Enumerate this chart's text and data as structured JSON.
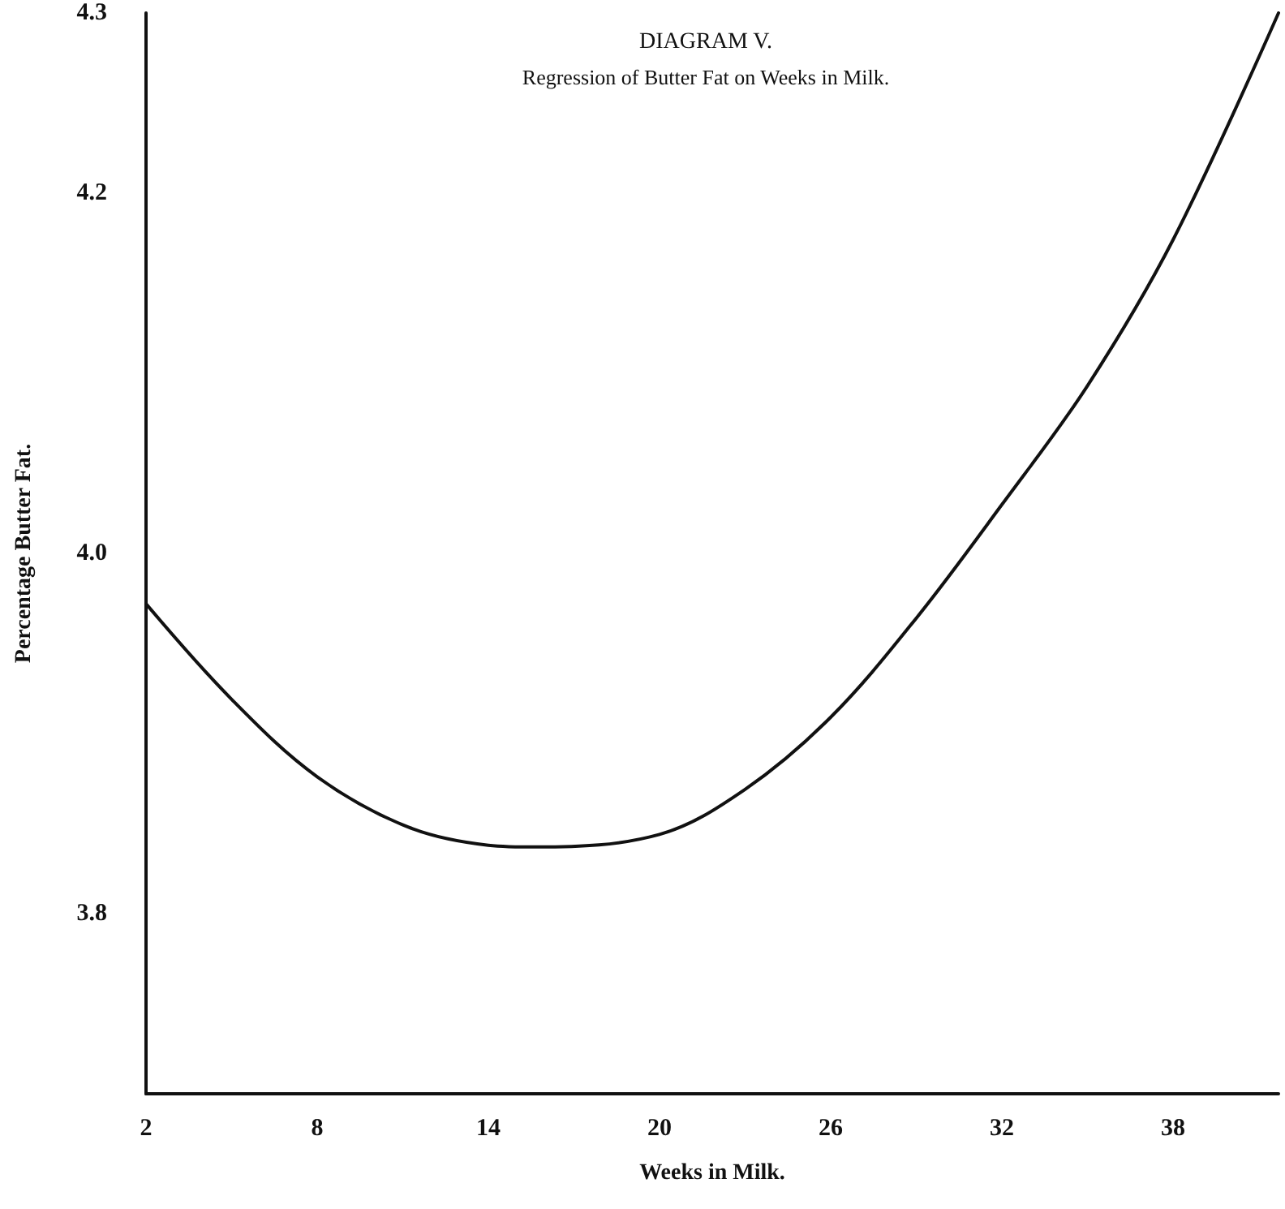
{
  "chart_data": {
    "type": "line",
    "title": "DIAGRAM V.",
    "subtitle": "Regression of Butter Fat on Weeks in Milk.",
    "xlabel": "Weeks in Milk.",
    "ylabel": "Percentage Butter Fat.",
    "x": [
      2,
      5,
      8,
      11.2,
      14,
      15.7,
      20,
      23,
      26,
      29,
      32,
      35,
      38,
      41.7
    ],
    "series": [
      {
        "color": "#111111",
        "values": [
          3.972,
          3.919,
          3.876,
          3.848,
          3.838,
          3.837,
          3.844,
          3.869,
          3.909,
          3.964,
          4.027,
          4.093,
          4.174,
          4.3
        ]
      }
    ],
    "xlim": [
      2,
      41.7
    ],
    "xticks": [
      2,
      8,
      14,
      20,
      26,
      32,
      38
    ],
    "ylim": [
      3.7,
      4.3
    ],
    "yticks": [
      3.8,
      {
        "value": 4,
        "label": "4.0"
      },
      4.2,
      4.3
    ],
    "grid": false,
    "marker": "none",
    "line_style": "solid"
  }
}
